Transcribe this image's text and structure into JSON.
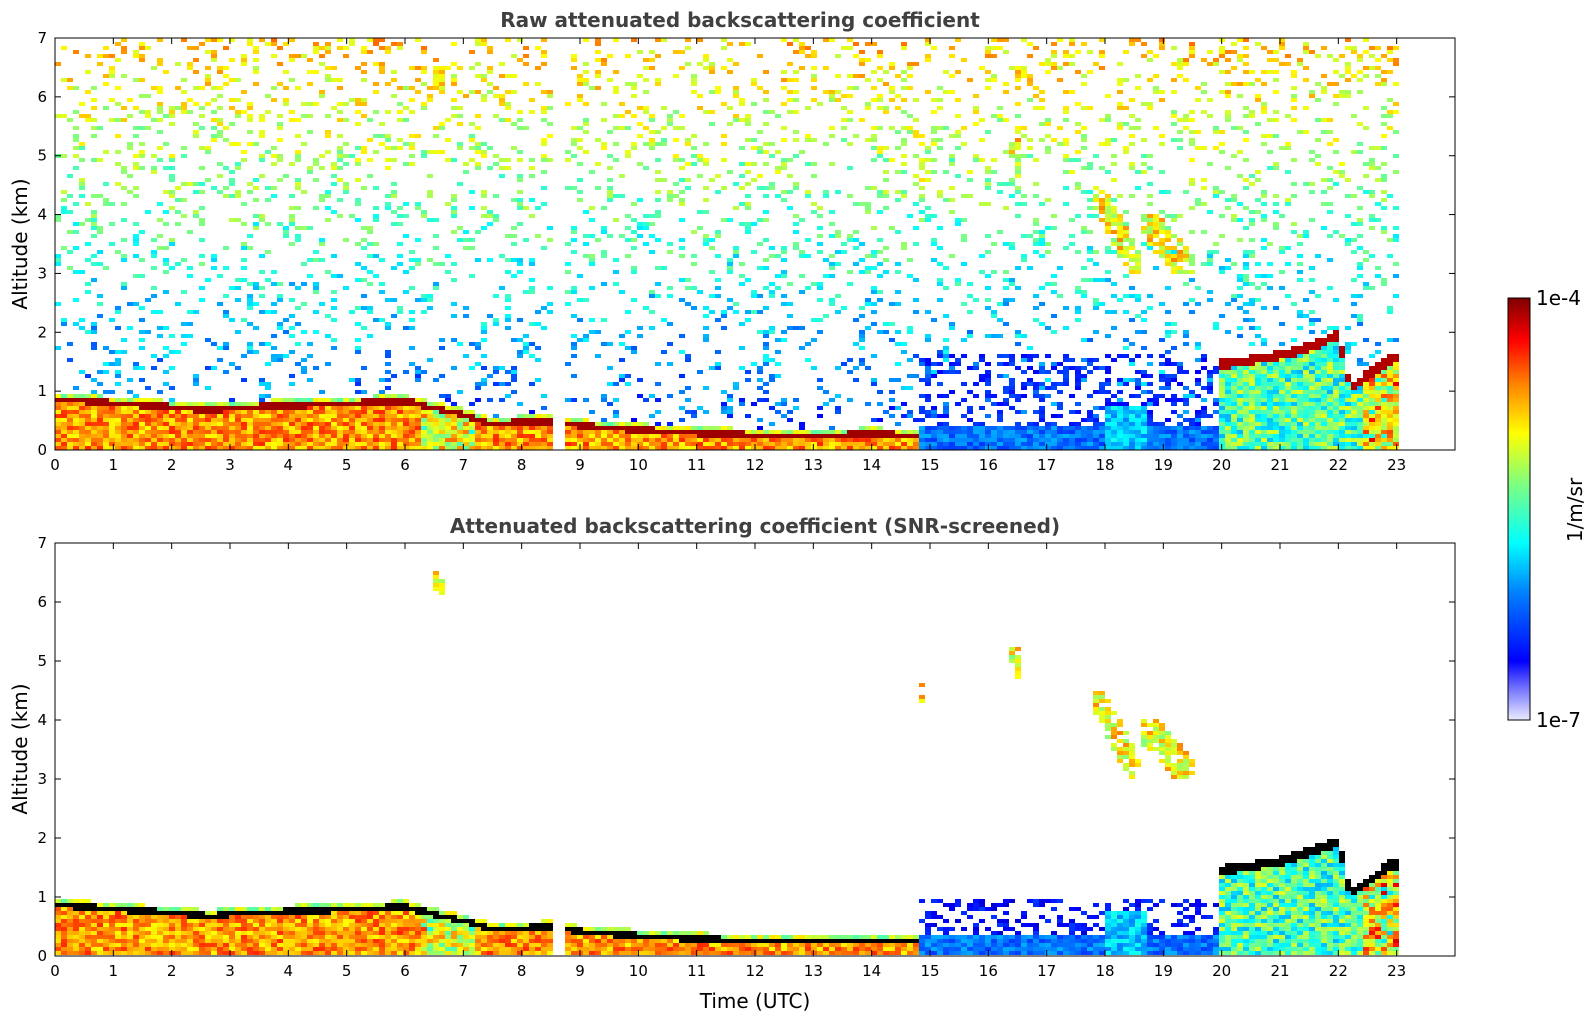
{
  "colors": {
    "jet": [
      "#00007f",
      "#0000ff",
      "#007fff",
      "#00ffff",
      "#7fff7f",
      "#ffff00",
      "#ff7f00",
      "#ff0000",
      "#7f0000"
    ],
    "screen_noise_level": "#ffffff",
    "saturation": "#000000"
  },
  "chart_data": [
    {
      "type": "heatmap",
      "title": "Raw attenuated backscattering coefficient",
      "ylabel": "Altitude (km)",
      "xlabel": "",
      "xlim": [
        0,
        24
      ],
      "ylim": [
        0,
        7
      ],
      "xticks": [
        "0",
        "1",
        "2",
        "3",
        "4",
        "5",
        "6",
        "7",
        "8",
        "9",
        "10",
        "11",
        "12",
        "13",
        "14",
        "15",
        "16",
        "17",
        "18",
        "19",
        "20",
        "21",
        "22",
        "23"
      ],
      "yticks": [
        "0",
        "1",
        "2",
        "3",
        "4",
        "5",
        "6",
        "7"
      ],
      "data_end_hour": 23,
      "data_gap_hours": [
        [
          8.55,
          8.62
        ],
        [
          8.66,
          8.72
        ]
      ],
      "top_layer_altitude_km": [
        [
          0,
          0.88
        ],
        [
          1,
          0.8
        ],
        [
          2,
          0.74
        ],
        [
          2.7,
          0.68
        ],
        [
          3,
          0.72
        ],
        [
          4,
          0.76
        ],
        [
          5,
          0.8
        ],
        [
          6,
          0.84
        ],
        [
          6.5,
          0.72
        ],
        [
          7,
          0.6
        ],
        [
          7.5,
          0.45
        ],
        [
          8,
          0.48
        ],
        [
          8.5,
          0.5
        ],
        [
          9,
          0.42
        ],
        [
          10,
          0.35
        ],
        [
          11,
          0.3
        ],
        [
          12,
          0.26
        ],
        [
          13,
          0.25
        ],
        [
          14,
          0.28
        ],
        [
          14.8,
          0.25
        ]
      ],
      "night_layer_altitude_km": [
        [
          20,
          1.45
        ],
        [
          21,
          1.6
        ],
        [
          21.5,
          1.75
        ],
        [
          22,
          1.95
        ],
        [
          22.2,
          1.05
        ],
        [
          22.9,
          1.55
        ]
      ],
      "cloud_features": [
        {
          "x": [
            17.8,
            18.6
          ],
          "y": [
            3.0,
            4.5
          ]
        },
        {
          "x": [
            18.6,
            19.5
          ],
          "y": [
            3.0,
            4.0
          ]
        },
        {
          "x": [
            16.4,
            16.6
          ],
          "y": [
            4.6,
            5.3
          ]
        },
        {
          "x": [
            14.8,
            14.95
          ],
          "y": [
            4.3,
            4.6
          ]
        },
        {
          "x": [
            6.5,
            6.7
          ],
          "y": [
            6.1,
            6.5
          ]
        }
      ]
    },
    {
      "type": "heatmap",
      "title": "Attenuated backscattering coefficient (SNR-screened)",
      "ylabel": "Altitude (km)",
      "xlabel": "Time (UTC)",
      "xlim": [
        0,
        24
      ],
      "ylim": [
        0,
        7
      ],
      "xticks": [
        "0",
        "1",
        "2",
        "3",
        "4",
        "5",
        "6",
        "7",
        "8",
        "9",
        "10",
        "11",
        "12",
        "13",
        "14",
        "15",
        "16",
        "17",
        "18",
        "19",
        "20",
        "21",
        "22",
        "23"
      ],
      "yticks": [
        "0",
        "1",
        "2",
        "3",
        "4",
        "5",
        "6",
        "7"
      ],
      "screened": true
    }
  ],
  "colorbar": {
    "label": "1/m/sr",
    "max_label": "1e-4",
    "min_label": "1e-7",
    "log_range": [
      -7,
      -4
    ]
  }
}
